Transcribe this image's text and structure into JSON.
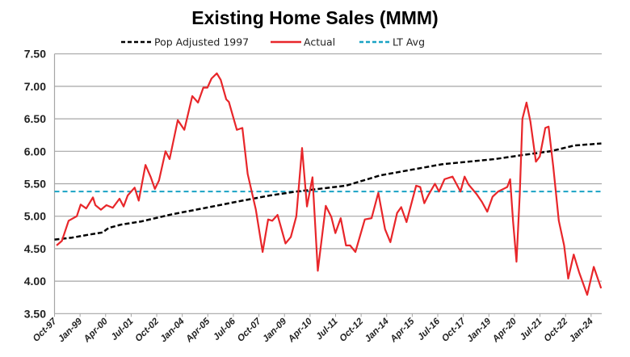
{
  "chart_data": {
    "type": "line",
    "title": "Existing Home Sales (MMM)",
    "xlabel": "",
    "ylabel": "",
    "ylim": [
      3.5,
      7.5
    ],
    "yticks": [
      "3.50",
      "4.00",
      "4.50",
      "5.00",
      "5.50",
      "6.00",
      "6.50",
      "7.00",
      "7.50"
    ],
    "xlim_years": [
      1997.75,
      2024.52
    ],
    "xtick_labels": [
      "Oct-97",
      "Jan-99",
      "Apr-00",
      "Jul-01",
      "Oct-02",
      "Jan-04",
      "Apr-05",
      "Jul-06",
      "Oct-07",
      "Jan-09",
      "Apr-10",
      "Jul-11",
      "Oct-12",
      "Jan-14",
      "Apr-15",
      "Jul-16",
      "Oct-17",
      "Jan-19",
      "Apr-20",
      "Jul-21",
      "Oct-22",
      "Jan-24"
    ],
    "xtick_start_year": 1997.75,
    "xtick_step_years": 1.25,
    "grid": "horizontal",
    "legend_position": "top-center",
    "series": [
      {
        "name": "Pop Adjusted 1997",
        "color": "#000000",
        "style": "dashed",
        "x": [
          1997.75,
          1998.6,
          1999.5,
          2000.1,
          2000.4,
          2001.0,
          2002.0,
          2003.5,
          2005.0,
          2006.94,
          2008.3,
          2009.58,
          2012.0,
          2013.7,
          2016.7,
          2019.3,
          2020.6,
          2022.0,
          2023.2,
          2024.5
        ],
        "y": [
          4.64,
          4.67,
          4.72,
          4.75,
          4.82,
          4.87,
          4.92,
          5.03,
          5.12,
          5.24,
          5.32,
          5.38,
          5.47,
          5.63,
          5.8,
          5.88,
          5.94,
          6.0,
          6.09,
          6.12
        ]
      },
      {
        "name": "Actual",
        "color": "#e8262a",
        "style": "solid",
        "x": [
          1997.85,
          1998.11,
          1998.44,
          1998.84,
          1999.03,
          1999.3,
          1999.63,
          1999.75,
          2000.02,
          2000.29,
          2000.6,
          2000.93,
          2001.13,
          2001.33,
          2001.67,
          2001.87,
          2002.2,
          2002.46,
          2002.66,
          2002.86,
          2003.18,
          2003.38,
          2003.78,
          2004.1,
          2004.49,
          2004.77,
          2005.03,
          2005.23,
          2005.43,
          2005.69,
          2005.88,
          2006.15,
          2006.28,
          2006.67,
          2006.94,
          2007.2,
          2007.6,
          2007.93,
          2008.2,
          2008.4,
          2008.66,
          2009.05,
          2009.31,
          2009.58,
          2009.86,
          2010.1,
          2010.37,
          2010.63,
          2011.02,
          2011.29,
          2011.49,
          2011.75,
          2012.01,
          2012.21,
          2012.47,
          2012.93,
          2013.26,
          2013.59,
          2013.92,
          2014.18,
          2014.51,
          2014.71,
          2014.97,
          2015.44,
          2015.64,
          2015.84,
          2016.03,
          2016.36,
          2016.56,
          2016.83,
          2017.22,
          2017.61,
          2017.81,
          2018.0,
          2018.4,
          2018.66,
          2018.92,
          2019.18,
          2019.45,
          2019.71,
          2019.9,
          2020.04,
          2020.18,
          2020.35,
          2020.51,
          2020.64,
          2020.84,
          2021.03,
          2021.3,
          2021.49,
          2021.76,
          2021.92,
          2022.15,
          2022.42,
          2022.68,
          2022.88,
          2023.15,
          2023.41,
          2023.81,
          2024.13,
          2024.49
        ],
        "y": [
          4.55,
          4.62,
          4.93,
          5.0,
          5.18,
          5.12,
          5.29,
          5.17,
          5.1,
          5.17,
          5.13,
          5.27,
          5.15,
          5.32,
          5.44,
          5.24,
          5.79,
          5.6,
          5.42,
          5.55,
          6.0,
          5.88,
          6.48,
          6.33,
          6.85,
          6.75,
          6.98,
          6.98,
          7.12,
          7.2,
          7.1,
          6.8,
          6.76,
          6.33,
          6.36,
          5.65,
          5.1,
          4.45,
          4.95,
          4.93,
          5.02,
          4.58,
          4.68,
          5.0,
          6.05,
          5.15,
          5.6,
          4.16,
          5.16,
          4.99,
          4.74,
          4.97,
          4.55,
          4.55,
          4.45,
          4.95,
          4.97,
          5.36,
          4.8,
          4.6,
          5.05,
          5.14,
          4.91,
          5.47,
          5.45,
          5.2,
          5.32,
          5.5,
          5.38,
          5.57,
          5.61,
          5.38,
          5.61,
          5.49,
          5.34,
          5.22,
          5.07,
          5.3,
          5.38,
          5.42,
          5.45,
          5.57,
          4.93,
          4.3,
          5.34,
          6.5,
          6.75,
          6.46,
          5.84,
          5.92,
          6.36,
          6.38,
          5.76,
          4.93,
          4.55,
          4.04,
          4.41,
          4.14,
          3.79,
          4.22,
          3.89
        ]
      },
      {
        "name": "LT Avg",
        "color": "#1aa3c4",
        "style": "dashed",
        "value": 5.38
      }
    ]
  }
}
